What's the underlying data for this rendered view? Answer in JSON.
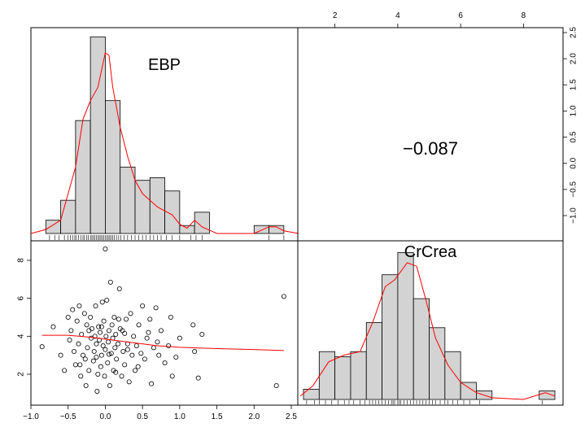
{
  "chart_data": [
    {
      "panel": "EBP-histogram",
      "type": "bar",
      "variable": "EBP",
      "label": "EBP",
      "bins": [
        {
          "x0": -0.8,
          "x1": -0.6,
          "height": 0.1
        },
        {
          "x0": -0.6,
          "x1": -0.4,
          "height": 0.25
        },
        {
          "x0": -0.4,
          "x1": -0.2,
          "height": 0.85
        },
        {
          "x0": -0.2,
          "x1": 0.0,
          "height": 1.48
        },
        {
          "x0": 0.0,
          "x1": 0.2,
          "height": 1.0
        },
        {
          "x0": 0.2,
          "x1": 0.4,
          "height": 0.5
        },
        {
          "x0": 0.4,
          "x1": 0.6,
          "height": 0.4
        },
        {
          "x0": 0.6,
          "x1": 0.8,
          "height": 0.42
        },
        {
          "x0": 0.8,
          "x1": 1.0,
          "height": 0.32
        },
        {
          "x0": 1.0,
          "x1": 1.2,
          "height": 0.06
        },
        {
          "x0": 1.2,
          "x1": 1.4,
          "height": 0.16
        },
        {
          "x0": 2.0,
          "x1": 2.2,
          "height": 0.06
        },
        {
          "x0": 2.2,
          "x1": 2.4,
          "height": 0.06
        }
      ],
      "density": [
        [
          -1.0,
          0
        ],
        [
          -0.8,
          0.03
        ],
        [
          -0.6,
          0.1
        ],
        [
          -0.4,
          0.5
        ],
        [
          -0.3,
          0.86
        ],
        [
          -0.2,
          1.0
        ],
        [
          -0.1,
          1.1
        ],
        [
          0.0,
          1.36
        ],
        [
          0.05,
          1.34
        ],
        [
          0.1,
          1.1
        ],
        [
          0.2,
          0.8
        ],
        [
          0.3,
          0.58
        ],
        [
          0.4,
          0.4
        ],
        [
          0.5,
          0.3
        ],
        [
          0.7,
          0.2
        ],
        [
          0.9,
          0.14
        ],
        [
          1.0,
          0.07
        ],
        [
          1.1,
          0.04
        ],
        [
          1.2,
          0.1
        ],
        [
          1.3,
          0.05
        ],
        [
          1.5,
          0.0
        ],
        [
          2.0,
          0.0
        ],
        [
          2.2,
          0.05
        ],
        [
          2.3,
          0.05
        ],
        [
          2.4,
          0.02
        ],
        [
          2.6,
          0.0
        ]
      ],
      "rug": [
        -0.75,
        -0.68,
        -0.62,
        -0.55,
        -0.5,
        -0.47,
        -0.44,
        -0.41,
        -0.39,
        -0.36,
        -0.33,
        -0.3,
        -0.28,
        -0.25,
        -0.23,
        -0.2,
        -0.18,
        -0.16,
        -0.14,
        -0.12,
        -0.1,
        -0.08,
        -0.06,
        -0.04,
        -0.02,
        0.0,
        0.02,
        0.04,
        0.06,
        0.08,
        0.1,
        0.12,
        0.15,
        0.18,
        0.21,
        0.25,
        0.3,
        0.35,
        0.4,
        0.45,
        0.5,
        0.55,
        0.6,
        0.65,
        0.7,
        0.75,
        0.82,
        0.9,
        1.0,
        1.15,
        1.22,
        1.3,
        2.2,
        2.4
      ]
    },
    {
      "panel": "correlation",
      "type": "table",
      "value": "−0.087"
    },
    {
      "panel": "scatter",
      "type": "scatter",
      "x_variable": "EBP",
      "y_variable": "CrCrea",
      "xlim": [
        -1.0,
        2.5
      ],
      "ylim": [
        0.6,
        9.0
      ],
      "x_ticks": [
        "−1.0",
        "−0.5",
        "0.0",
        "0.5",
        "1.0",
        "1.5",
        "2.0",
        "2.5"
      ],
      "x_tick_values": [
        -1.0,
        -0.5,
        0.0,
        0.5,
        1.0,
        1.5,
        2.0,
        2.5
      ],
      "y_ticks": [
        "2",
        "4",
        "6",
        "8"
      ],
      "y_tick_values": [
        2,
        4,
        6,
        8
      ],
      "points": [
        [
          -0.85,
          3.45
        ],
        [
          -0.7,
          4.5
        ],
        [
          -0.6,
          3.0
        ],
        [
          -0.55,
          2.2
        ],
        [
          -0.5,
          5.0
        ],
        [
          -0.48,
          3.8
        ],
        [
          -0.46,
          4.3
        ],
        [
          -0.44,
          5.4
        ],
        [
          -0.42,
          3.2
        ],
        [
          -0.4,
          2.5
        ],
        [
          -0.38,
          4.8
        ],
        [
          -0.36,
          3.6
        ],
        [
          -0.35,
          5.6
        ],
        [
          -0.33,
          1.9
        ],
        [
          -0.32,
          4.1
        ],
        [
          -0.3,
          3.0
        ],
        [
          -0.28,
          5.2
        ],
        [
          -0.27,
          2.8
        ],
        [
          -0.26,
          1.4
        ],
        [
          -0.25,
          4.6
        ],
        [
          -0.24,
          3.4
        ],
        [
          -0.22,
          2.2
        ],
        [
          -0.2,
          5.0
        ],
        [
          -0.19,
          3.9
        ],
        [
          -0.18,
          4.4
        ],
        [
          -0.16,
          2.7
        ],
        [
          -0.15,
          3.2
        ],
        [
          -0.14,
          4.0
        ],
        [
          -0.13,
          5.6
        ],
        [
          -0.12,
          3.6
        ],
        [
          -0.11,
          1.1
        ],
        [
          -0.1,
          2.0
        ],
        [
          -0.09,
          4.5
        ],
        [
          -0.08,
          3.8
        ],
        [
          -0.07,
          4.2
        ],
        [
          -0.06,
          2.4
        ],
        [
          -0.05,
          3.0
        ],
        [
          -0.04,
          5.8
        ],
        [
          -0.03,
          3.5
        ],
        [
          -0.02,
          4.8
        ],
        [
          -0.01,
          1.9
        ],
        [
          0.0,
          3.3
        ],
        [
          0.01,
          4.0
        ],
        [
          0.02,
          5.9
        ],
        [
          0.03,
          2.6
        ],
        [
          0.04,
          3.7
        ],
        [
          0.05,
          4.3
        ],
        [
          0.06,
          1.4
        ],
        [
          0.07,
          6.85
        ],
        [
          0.08,
          3.1
        ],
        [
          0.09,
          4.6
        ],
        [
          0.1,
          3.9
        ],
        [
          0.11,
          2.2
        ],
        [
          0.12,
          5.0
        ],
        [
          0.13,
          3.4
        ],
        [
          0.14,
          4.1
        ],
        [
          0.15,
          2.8
        ],
        [
          0.17,
          3.6
        ],
        [
          0.19,
          6.5
        ],
        [
          0.2,
          4.4
        ],
        [
          0.22,
          1.9
        ],
        [
          0.24,
          3.2
        ],
        [
          0.26,
          2.5
        ],
        [
          0.28,
          4.9
        ],
        [
          0.3,
          3.6
        ],
        [
          0.32,
          1.6
        ],
        [
          0.34,
          5.2
        ],
        [
          0.36,
          3.0
        ],
        [
          0.38,
          4.0
        ],
        [
          0.4,
          2.2
        ],
        [
          0.42,
          3.5
        ],
        [
          0.45,
          4.6
        ],
        [
          0.48,
          3.1
        ],
        [
          0.5,
          5.6
        ],
        [
          0.53,
          2.8
        ],
        [
          0.56,
          3.9
        ],
        [
          0.6,
          4.9
        ],
        [
          0.62,
          1.5
        ],
        [
          0.65,
          3.4
        ],
        [
          0.68,
          5.5
        ],
        [
          0.72,
          3.0
        ],
        [
          0.75,
          4.3
        ],
        [
          0.8,
          2.6
        ],
        [
          0.85,
          3.5
        ],
        [
          0.88,
          5.0
        ],
        [
          0.9,
          1.9
        ],
        [
          0.95,
          2.9
        ],
        [
          1.0,
          3.9
        ],
        [
          1.18,
          4.6
        ],
        [
          1.2,
          3.2
        ],
        [
          1.25,
          1.8
        ],
        [
          1.3,
          4.1
        ],
        [
          2.3,
          1.4
        ],
        [
          2.4,
          6.1
        ],
        [
          0.0,
          8.6
        ],
        [
          0.26,
          4.15
        ],
        [
          0.05,
          3.05
        ],
        [
          -0.22,
          4.3
        ],
        [
          0.14,
          2.1
        ],
        [
          0.3,
          3.3
        ],
        [
          -0.12,
          2.9
        ],
        [
          0.44,
          2.4
        ],
        [
          0.58,
          4.2
        ],
        [
          -0.34,
          2.5
        ],
        [
          0.18,
          4.9
        ],
        [
          0.7,
          3.7
        ],
        [
          -0.05,
          4.5
        ],
        [
          0.23,
          4.3
        ]
      ],
      "lowess": [
        [
          -0.85,
          4.05
        ],
        [
          -0.5,
          4.05
        ],
        [
          -0.2,
          3.95
        ],
        [
          0.0,
          3.85
        ],
        [
          0.3,
          3.7
        ],
        [
          0.7,
          3.5
        ],
        [
          1.0,
          3.42
        ],
        [
          1.5,
          3.35
        ],
        [
          2.0,
          3.3
        ],
        [
          2.4,
          3.25
        ]
      ]
    },
    {
      "panel": "CrCrea-histogram",
      "type": "bar",
      "variable": "CrCrea",
      "label": "CrCrea",
      "bins": [
        {
          "x0": 1.0,
          "x1": 1.5,
          "height": 0.06
        },
        {
          "x0": 1.5,
          "x1": 2.0,
          "height": 0.28
        },
        {
          "x0": 2.0,
          "x1": 2.5,
          "height": 0.25
        },
        {
          "x0": 2.5,
          "x1": 3.0,
          "height": 0.28
        },
        {
          "x0": 3.0,
          "x1": 3.5,
          "height": 0.45
        },
        {
          "x0": 3.5,
          "x1": 4.0,
          "height": 0.73
        },
        {
          "x0": 4.0,
          "x1": 4.5,
          "height": 0.86
        },
        {
          "x0": 4.5,
          "x1": 5.0,
          "height": 0.59
        },
        {
          "x0": 5.0,
          "x1": 5.5,
          "height": 0.42
        },
        {
          "x0": 5.5,
          "x1": 6.0,
          "height": 0.28
        },
        {
          "x0": 6.0,
          "x1": 6.5,
          "height": 0.1
        },
        {
          "x0": 6.5,
          "x1": 7.0,
          "height": 0.05
        },
        {
          "x0": 8.5,
          "x1": 9.0,
          "height": 0.05
        }
      ],
      "density": [
        [
          0.9,
          0.02
        ],
        [
          1.3,
          0.08
        ],
        [
          1.8,
          0.22
        ],
        [
          2.3,
          0.26
        ],
        [
          2.8,
          0.28
        ],
        [
          3.2,
          0.45
        ],
        [
          3.6,
          0.66
        ],
        [
          3.9,
          0.7
        ],
        [
          4.3,
          0.8
        ],
        [
          4.6,
          0.78
        ],
        [
          4.9,
          0.58
        ],
        [
          5.2,
          0.36
        ],
        [
          5.6,
          0.2
        ],
        [
          6.0,
          0.1
        ],
        [
          6.5,
          0.04
        ],
        [
          7.0,
          0.01
        ],
        [
          8.0,
          0.0
        ],
        [
          8.7,
          0.04
        ],
        [
          9.0,
          0.02
        ]
      ],
      "rug": [
        1.1,
        1.35,
        1.5,
        1.7,
        1.9,
        2.1,
        2.3,
        2.45,
        2.6,
        2.8,
        2.95,
        3.1,
        3.2,
        3.3,
        3.4,
        3.5,
        3.6,
        3.7,
        3.8,
        3.85,
        3.9,
        4.0,
        4.05,
        4.1,
        4.2,
        4.3,
        4.4,
        4.5,
        4.6,
        4.7,
        4.8,
        4.9,
        5.0,
        5.1,
        5.2,
        5.35,
        5.5,
        5.6,
        5.75,
        5.9,
        6.1,
        6.3,
        6.6,
        8.6
      ]
    }
  ],
  "top_axis": {
    "ticks": [
      "2",
      "4",
      "6",
      "8"
    ],
    "tick_values": [
      2,
      4,
      6,
      8
    ]
  },
  "right_axis": {
    "ticks": [
      "−1.0",
      "−0.5",
      "0.0",
      "0.5",
      "1.0",
      "1.5",
      "2.0",
      "2.5"
    ],
    "tick_values": [
      -1.0,
      -0.5,
      0.0,
      0.5,
      1.0,
      1.5,
      2.0,
      2.5
    ]
  },
  "colors": {
    "bar_fill": "#d3d3d3",
    "bar_stroke": "#000000",
    "density": "#ff0000",
    "lowess": "#ff0000",
    "points": "#000000"
  }
}
